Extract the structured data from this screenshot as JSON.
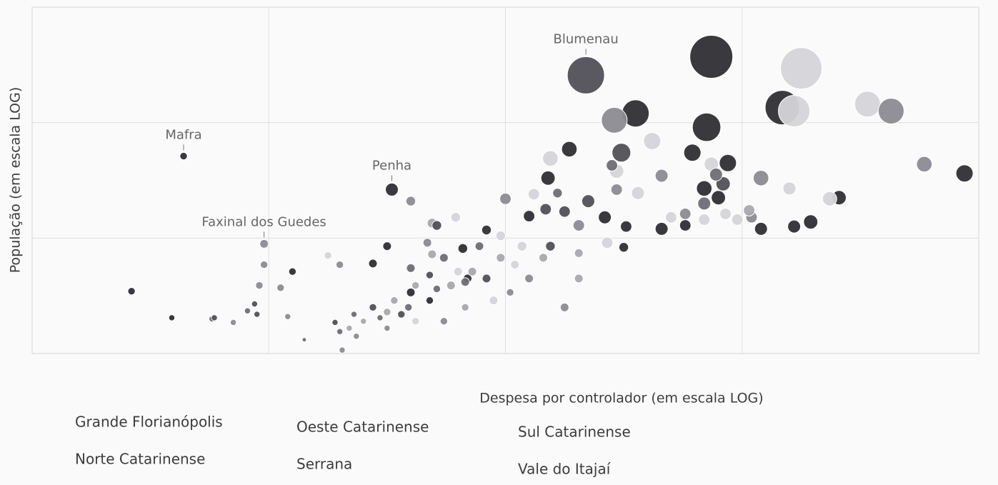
{
  "chart_data": {
    "type": "bubble",
    "x_label": "Despesa por controlador (em escala LOG)",
    "y_label": "População (em escala LOG)",
    "xlim": [
      0,
      4
    ],
    "ylim": [
      0,
      3
    ],
    "grid": true,
    "annotations": [
      {
        "text": "Blumenau",
        "x": 2.34,
        "y": 2.41
      },
      {
        "text": "Mafra",
        "x": 0.64,
        "y": 1.71
      },
      {
        "text": "Penha",
        "x": 1.52,
        "y": 1.42
      },
      {
        "text": "Faxinal dos Guedes",
        "x": 0.98,
        "y": 0.95
      }
    ],
    "series": [
      {
        "name": "Grande Florianópolis",
        "color": "#2e2e34",
        "x": [
          2.87,
          3.17,
          2.85,
          2.55,
          2.27,
          2.79,
          2.94,
          2.18,
          2.84,
          3.41,
          3.29,
          3.22,
          3.08,
          2.66,
          2.51,
          2.42,
          2.5,
          2.1,
          1.92,
          1.82,
          1.44,
          1.5,
          1.1,
          0.42,
          0.59,
          0.64,
          1.52,
          3.94,
          2.9,
          2.76,
          1.6,
          1.68,
          1.84
        ],
        "values": [
          2.57,
          2.13,
          1.96,
          2.08,
          1.77,
          1.74,
          1.65,
          1.52,
          1.43,
          1.35,
          1.14,
          1.1,
          1.08,
          1.08,
          1.1,
          1.18,
          0.92,
          1.19,
          1.07,
          0.91,
          0.78,
          0.93,
          0.71,
          0.54,
          0.31,
          1.71,
          1.42,
          1.56,
          1.35,
          1.11,
          0.53,
          0.46,
          0.65
        ],
        "sizes": [
          100,
          64,
          44,
          40,
          13,
          16,
          16,
          11,
          13,
          11,
          11,
          9,
          9,
          9,
          7,
          9,
          5,
          7,
          5,
          5,
          4,
          4,
          3,
          3,
          2,
          3,
          9,
          16,
          11,
          7,
          4,
          3,
          4
        ]
      },
      {
        "name": "Norte Catarinense",
        "color": "#6e6e74",
        "x": [
          2.45,
          2.84,
          2.89,
          2.22,
          1.83,
          1.71,
          1.59,
          1.47,
          1.36,
          1.3,
          1.15,
          0.91,
          0.76,
          1.74,
          1.89,
          1.6
        ],
        "values": [
          1.63,
          1.3,
          1.55,
          1.39,
          0.62,
          0.56,
          0.4,
          0.31,
          0.34,
          0.19,
          0.12,
          0.37,
          0.3,
          0.83,
          0.93,
          0.74
        ],
        "sizes": [
          7,
          9,
          9,
          5,
          4,
          3,
          3,
          2,
          2,
          2,
          1,
          2,
          2,
          4,
          4,
          4
        ]
      },
      {
        "name": "Oeste Catarinense",
        "color": "#d4d4d9",
        "x": [
          3.25,
          3.22,
          3.53,
          2.62,
          2.19,
          2.47,
          2.12,
          2.56,
          3.2,
          3.37,
          2.7,
          2.84,
          2.93,
          2.98,
          1.79,
          1.98,
          2.07,
          1.25,
          1.95,
          2.43,
          1.62,
          1.8,
          2.87,
          2.04
        ],
        "values": [
          2.47,
          2.1,
          2.16,
          1.84,
          1.69,
          1.58,
          1.38,
          1.39,
          1.43,
          1.34,
          1.18,
          1.16,
          1.21,
          1.16,
          1.18,
          1.02,
          0.93,
          0.85,
          0.46,
          0.96,
          0.28,
          0.71,
          1.64,
          0.77
        ],
        "sizes": [
          93,
          54,
          36,
          16,
          13,
          11,
          7,
          9,
          9,
          11,
          7,
          7,
          7,
          7,
          5,
          5,
          5,
          3,
          4,
          7,
          3,
          4,
          11,
          4
        ]
      },
      {
        "name": "Serrana",
        "color": "#8b8b91",
        "x": [
          2.46,
          3.63,
          2.47,
          2.66,
          3.08,
          3.77,
          2.0,
          1.6,
          0.98,
          0.98,
          0.96,
          1.05,
          1.08,
          0.85,
          1.3,
          1.67,
          2.02,
          2.25,
          2.1,
          1.74,
          1.31,
          1.37,
          1.5,
          2.76,
          3.04,
          2.31
        ],
        "values": [
          2.02,
          2.1,
          1.42,
          1.54,
          1.52,
          1.64,
          1.34,
          1.32,
          0.95,
          0.77,
          0.59,
          0.57,
          0.32,
          0.27,
          0.77,
          0.96,
          0.53,
          0.4,
          0.65,
          0.28,
          0.03,
          0.15,
          0.22,
          1.21,
          1.18,
          1.11
        ],
        "sizes": [
          36,
          36,
          7,
          9,
          13,
          13,
          7,
          5,
          4,
          3,
          3,
          3,
          2,
          2,
          3,
          4,
          3,
          4,
          4,
          3,
          2,
          2,
          2,
          7,
          7,
          7
        ]
      },
      {
        "name": "Sul Catarinense",
        "color": "#a8a8ad",
        "x": [
          1.69,
          1.69,
          1.77,
          1.86,
          1.53,
          1.62,
          1.4,
          1.34,
          1.5,
          2.16,
          2.31,
          1.83,
          1.98,
          3.03,
          2.31
        ],
        "values": [
          1.13,
          0.86,
          0.59,
          0.71,
          0.46,
          0.59,
          0.28,
          0.22,
          0.36,
          0.83,
          0.65,
          0.4,
          0.83,
          1.24,
          0.87
        ],
        "sizes": [
          5,
          4,
          4,
          4,
          3,
          3,
          2,
          2,
          3,
          4,
          4,
          3,
          4,
          7,
          4
        ]
      },
      {
        "name": "Vale do Itajaí",
        "color": "#505056",
        "x": [
          2.34,
          2.49,
          2.17,
          2.25,
          2.35,
          2.19,
          1.92,
          1.68,
          1.56,
          1.44,
          1.28,
          0.95,
          0.94,
          2.92,
          1.71,
          0.77
        ],
        "values": [
          2.41,
          1.74,
          1.25,
          1.23,
          1.32,
          0.93,
          0.65,
          0.68,
          0.34,
          0.4,
          0.27,
          0.34,
          0.43,
          1.47,
          1.11,
          0.31
        ],
        "sizes": [
          75,
          19,
          7,
          7,
          9,
          5,
          4,
          3,
          3,
          3,
          2,
          2,
          2,
          11,
          5,
          2
        ]
      }
    ]
  }
}
